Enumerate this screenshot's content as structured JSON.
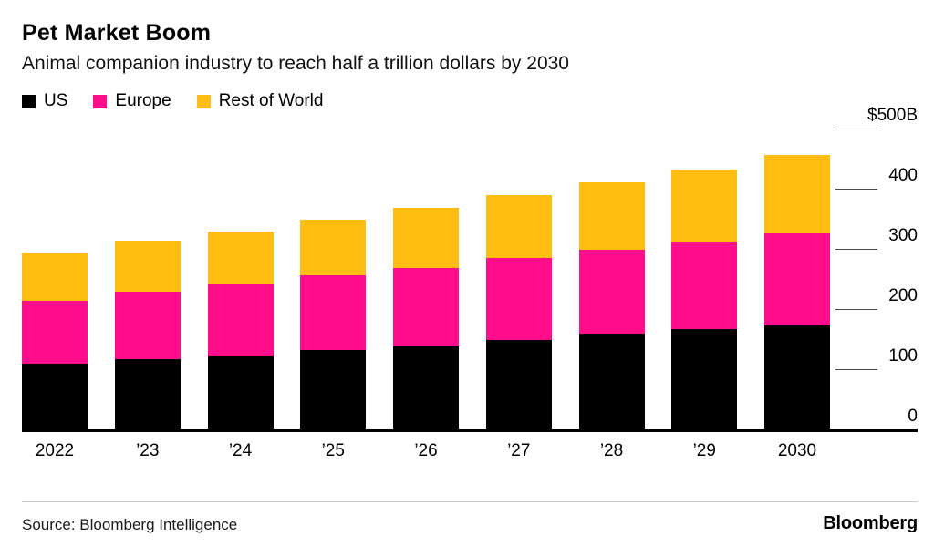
{
  "header": {
    "title": "Pet Market Boom",
    "subtitle": "Animal companion industry to reach half a trillion dollars by 2030"
  },
  "legend": [
    {
      "label": "US",
      "color": "#000000"
    },
    {
      "label": "Europe",
      "color": "#ff0d8a"
    },
    {
      "label": "Rest of World",
      "color": "#ffbd12"
    }
  ],
  "chart_data": {
    "type": "bar",
    "stacked": true,
    "title": "Pet Market Boom",
    "subtitle": "Animal companion industry to reach half a trillion dollars by 2030",
    "unit": "billion USD",
    "categories": [
      "2022",
      "’23",
      "’24",
      "’25",
      "’26",
      "’27",
      "’28",
      "’29",
      "2030"
    ],
    "series": [
      {
        "name": "US",
        "color": "#000000",
        "values": [
          110,
          118,
          125,
          133,
          140,
          150,
          160,
          168,
          175
        ]
      },
      {
        "name": "Europe",
        "color": "#ff0d8a",
        "values": [
          105,
          112,
          118,
          124,
          130,
          136,
          140,
          145,
          152
        ]
      },
      {
        "name": "Rest of World",
        "color": "#ffbd12",
        "values": [
          80,
          85,
          88,
          93,
          100,
          105,
          112,
          120,
          130
        ]
      }
    ],
    "ylim": [
      0,
      500
    ],
    "y_ticks": [
      {
        "label": "$500B",
        "value": 500
      },
      {
        "label": "400",
        "value": 400
      },
      {
        "label": "300",
        "value": 300
      },
      {
        "label": "200",
        "value": 200
      },
      {
        "label": "100",
        "value": 100
      },
      {
        "label": "0",
        "value": 0
      }
    ],
    "legend_position": "top",
    "grid": "right-side short tick dashes only",
    "axis_side": "right"
  },
  "footer": {
    "source": "Source: Bloomberg Intelligence",
    "brand": "Bloomberg"
  }
}
